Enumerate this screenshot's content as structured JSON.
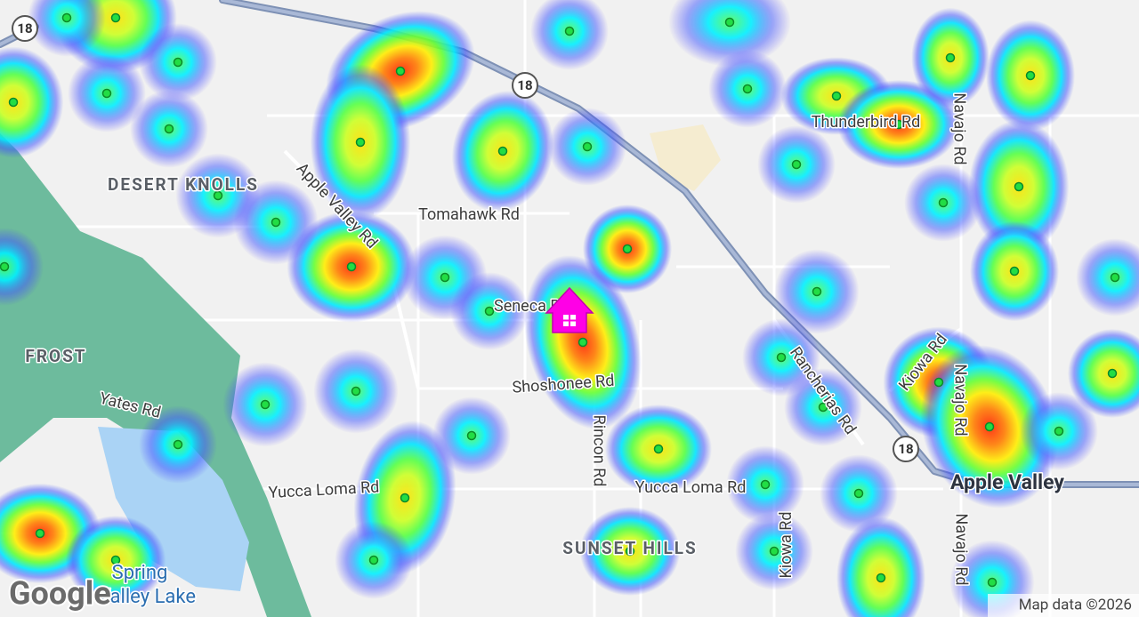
{
  "map": {
    "shields": [
      "18",
      "18",
      "18"
    ],
    "places": [
      "DESERT KNOLLS",
      "FROST",
      "SUNSET HILLS"
    ],
    "city": "Apple Valley",
    "lake": [
      "Spring",
      "Valley Lake"
    ],
    "roads": [
      "Apple Valley Rd",
      "Tomahawk Rd",
      "Thunderbird Rd",
      "Navajo Rd",
      "Navajo Rd",
      "Navajo Rd",
      "Yates Rd",
      "Seneca Rd",
      "Shoshonee Rd",
      "Rincon Rd",
      "Rancherias Rd",
      "Kiowa Rd",
      "Kiowa Rd",
      "Yucca Loma Rd",
      "Yucca Loma Rd"
    ],
    "logo": "Google",
    "attribution": "Map data ©2026"
  }
}
